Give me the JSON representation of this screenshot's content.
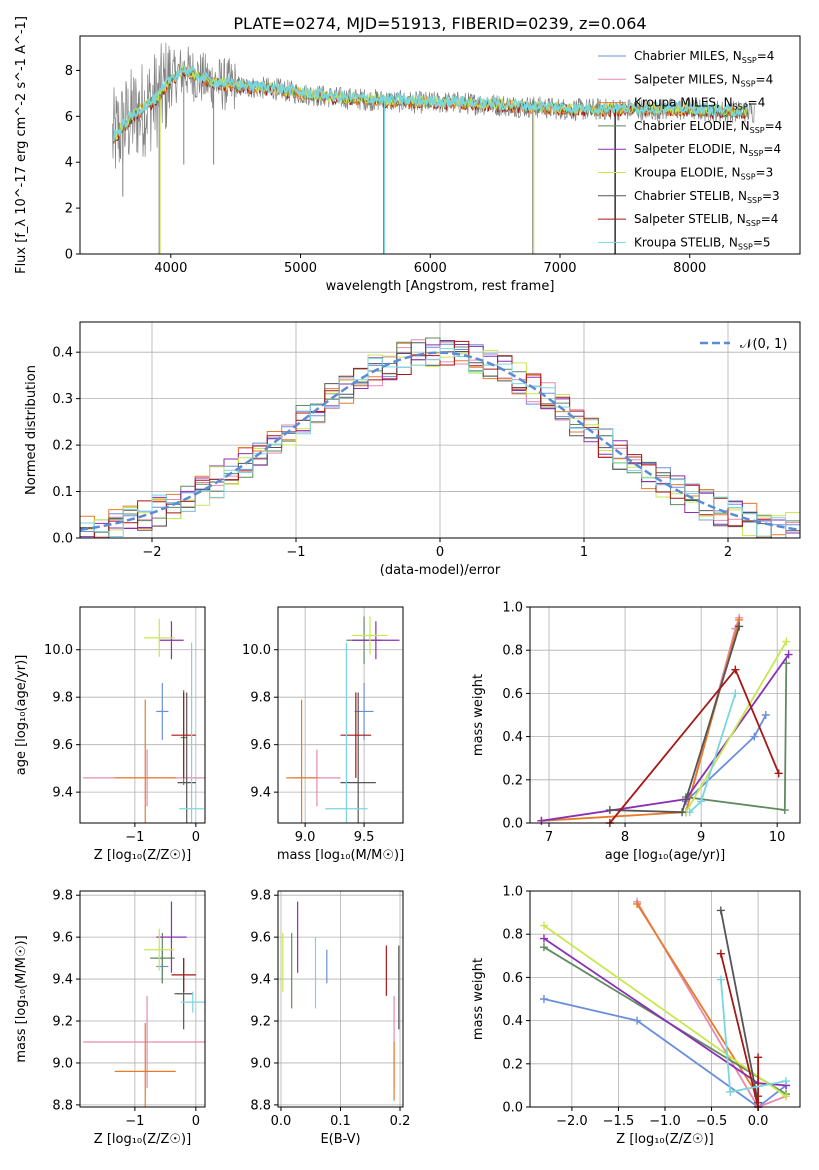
{
  "figure_title": "PLATE=0274, MJD=51913, FIBERID=0239, z=0.064",
  "colors": {
    "chabrier_miles": "#6a8edc",
    "salpeter_miles": "#e68ab0",
    "kroupa_miles": "#e87b27",
    "chabrier_elodie": "#5f8a5f",
    "salpeter_elodie": "#8b2fb5",
    "kroupa_elodie": "#c6e84e",
    "chabrier_stelib": "#555555",
    "salpeter_stelib": "#a81616",
    "kroupa_stelib": "#7ad6de",
    "observed": "#808080",
    "normal_curve": "#5b8bd6",
    "grid": "#b0b0b0"
  },
  "chart_data": [
    {
      "id": "spectrum",
      "type": "line",
      "xlabel": "wavelength [Angstrom, rest frame]",
      "ylabel": "Flux [f_λ 10^-17 erg cm^-2 s^-1 A^-1]",
      "xlim": [
        3300,
        8850
      ],
      "ylim": [
        0,
        9.5
      ],
      "xticks": [
        4000,
        5000,
        6000,
        7000,
        8000
      ],
      "yticks": [
        0,
        2,
        4,
        6,
        8
      ],
      "grid": false,
      "legend_position": "top-right",
      "legend": [
        {
          "label": "Chabrier MILES, N",
          "sub": "SSP",
          "value": "=4",
          "color_key": "chabrier_miles"
        },
        {
          "label": "Salpeter MILES, N",
          "sub": "SSP",
          "value": "=4",
          "color_key": "salpeter_miles"
        },
        {
          "label": "Kroupa MILES, N",
          "sub": "SSP",
          "value": "=4",
          "color_key": "kroupa_miles"
        },
        {
          "label": "Chabrier ELODIE, N",
          "sub": "SSP",
          "value": "=4",
          "color_key": "chabrier_elodie"
        },
        {
          "label": "Salpeter ELODIE, N",
          "sub": "SSP",
          "value": "=4",
          "color_key": "salpeter_elodie"
        },
        {
          "label": "Kroupa ELODIE, N",
          "sub": "SSP",
          "value": "=3",
          "color_key": "kroupa_elodie"
        },
        {
          "label": "Chabrier STELIB, N",
          "sub": "SSP",
          "value": "=3",
          "color_key": "chabrier_stelib"
        },
        {
          "label": "Salpeter STELIB, N",
          "sub": "SSP",
          "value": "=4",
          "color_key": "salpeter_stelib"
        },
        {
          "label": "Kroupa STELIB, N",
          "sub": "SSP",
          "value": "=5",
          "color_key": "kroupa_stelib"
        }
      ],
      "continuum": {
        "x": [
          3550,
          3700,
          3900,
          4000,
          4100,
          4300,
          4500,
          4800,
          5000,
          5300,
          5600,
          5900,
          6200,
          6500,
          6800,
          7100,
          7400,
          7700,
          8000,
          8300,
          8500
        ],
        "y": [
          5.0,
          6.0,
          6.8,
          7.6,
          8.0,
          7.5,
          7.3,
          7.2,
          7.0,
          6.8,
          6.7,
          6.6,
          6.6,
          6.5,
          6.4,
          6.3,
          6.3,
          6.3,
          6.3,
          6.2,
          6.2
        ]
      },
      "observed_spikes": [
        {
          "x": 3910,
          "y": 0.0
        },
        {
          "x": 5640,
          "y": 0.0
        },
        {
          "x": 6790,
          "y": 0.0
        },
        {
          "x": 7420,
          "y": 0.0
        },
        {
          "x": 3630,
          "y": 2.5
        },
        {
          "x": 4330,
          "y": 3.9
        },
        {
          "x": 4100,
          "y": 3.9
        }
      ]
    },
    {
      "id": "residuals",
      "type": "step",
      "xlabel": "(data-model)/error",
      "ylabel": "Normed distribution",
      "xlim": [
        -2.5,
        2.5
      ],
      "ylim": [
        0,
        0.465
      ],
      "xticks": [
        -2,
        -1,
        0,
        1,
        2
      ],
      "xtick_labels": [
        "−2",
        "−1",
        "0",
        "1",
        "2"
      ],
      "yticks": [
        0.0,
        0.1,
        0.2,
        0.3,
        0.4
      ],
      "ytick_labels": [
        "0.0",
        "0.1",
        "0.2",
        "0.3",
        "0.4"
      ],
      "grid": true,
      "legend_position": "top-right",
      "legend": [
        {
          "label": "𝒩(0, 1)",
          "color_key": "normal_curve",
          "style": "dashed"
        }
      ],
      "bin_width": 0.1
    },
    {
      "id": "age_vs_z",
      "type": "errorbar",
      "xlabel": "Z [log₁₀(Z/Z☉)]",
      "ylabel": "age  [log₁₀(age/yr)]",
      "xlim": [
        -1.9,
        0.15
      ],
      "ylim": [
        9.27,
        10.18
      ],
      "xticks": [
        -1,
        0
      ],
      "xtick_labels": [
        "−1",
        "0"
      ],
      "yticks": [
        9.4,
        9.6,
        9.8,
        10.0
      ],
      "ytick_labels": [
        "9.4",
        "9.6",
        "9.8",
        "10.0"
      ],
      "grid": true,
      "points": [
        {
          "color_key": "chabrier_miles",
          "x": -0.55,
          "xerr": 0.1,
          "y": 9.74,
          "yerr": 0.12
        },
        {
          "color_key": "salpeter_miles",
          "x": -0.8,
          "xerr": 1.05,
          "y": 9.46,
          "yerr": 0.12
        },
        {
          "color_key": "kroupa_miles",
          "x": -0.83,
          "xerr": 0.5,
          "y": 9.46,
          "yerr": 0.33
        },
        {
          "color_key": "chabrier_elodie",
          "x": -0.2,
          "xerr": 0.05,
          "y": 9.63,
          "yerr": 0.2
        },
        {
          "color_key": "salpeter_elodie",
          "x": -0.4,
          "xerr": 0.2,
          "y": 10.04,
          "yerr": 0.08
        },
        {
          "color_key": "kroupa_elodie",
          "x": -0.6,
          "xerr": 0.25,
          "y": 10.05,
          "yerr": 0.08
        },
        {
          "color_key": "chabrier_stelib",
          "x": -0.15,
          "xerr": 0.15,
          "y": 9.44,
          "yerr": 0.38
        },
        {
          "color_key": "salpeter_stelib",
          "x": -0.2,
          "xerr": 0.2,
          "y": 9.64,
          "yerr": 0.18
        },
        {
          "color_key": "kroupa_stelib",
          "x": -0.07,
          "xerr": 0.2,
          "y": 9.33,
          "yerr": 0.7
        }
      ]
    },
    {
      "id": "age_vs_mass",
      "type": "errorbar",
      "xlabel": "mass [log₁₀(M/M☉)]",
      "ylabel": "",
      "xlim": [
        8.77,
        9.83
      ],
      "ylim": [
        9.27,
        10.18
      ],
      "xticks": [
        9.0,
        9.5
      ],
      "xtick_labels": [
        "9.0",
        "9.5"
      ],
      "yticks": [
        9.4,
        9.6,
        9.8,
        10.0
      ],
      "ytick_labels": [
        "9.4",
        "9.6",
        "9.8",
        "10.0"
      ],
      "grid": true,
      "points": [
        {
          "color_key": "chabrier_miles",
          "x": 9.5,
          "xerr": 0.08,
          "y": 9.74,
          "yerr": 0.12
        },
        {
          "color_key": "salpeter_miles",
          "x": 9.1,
          "xerr": 0.2,
          "y": 9.46,
          "yerr": 0.12
        },
        {
          "color_key": "kroupa_miles",
          "x": 8.97,
          "xerr": 0.13,
          "y": 9.46,
          "yerr": 0.33
        },
        {
          "color_key": "chabrier_elodie",
          "x": 9.5,
          "xerr": 0.15,
          "y": 10.04,
          "yerr": 0.1
        },
        {
          "color_key": "salpeter_elodie",
          "x": 9.6,
          "xerr": 0.2,
          "y": 10.04,
          "yerr": 0.08
        },
        {
          "color_key": "kroupa_elodie",
          "x": 9.55,
          "xerr": 0.15,
          "y": 10.06,
          "yerr": 0.08
        },
        {
          "color_key": "chabrier_stelib",
          "x": 9.45,
          "xerr": 0.15,
          "y": 9.44,
          "yerr": 0.38
        },
        {
          "color_key": "salpeter_stelib",
          "x": 9.43,
          "xerr": 0.13,
          "y": 9.64,
          "yerr": 0.18
        },
        {
          "color_key": "kroupa_stelib",
          "x": 9.35,
          "xerr": 0.18,
          "y": 9.33,
          "yerr": 0.7
        }
      ]
    },
    {
      "id": "weight_vs_age",
      "type": "line",
      "xlabel": "age  [log₁₀(age/yr)]",
      "ylabel": "mass weight",
      "xlim": [
        6.75,
        10.3
      ],
      "ylim": [
        0,
        1.0
      ],
      "xticks": [
        7,
        8,
        9,
        10
      ],
      "xtick_labels": [
        "7",
        "8",
        "9",
        "10"
      ],
      "yticks": [
        0,
        0.2,
        0.4,
        0.6,
        0.8,
        1.0
      ],
      "ytick_labels": [
        "0.0",
        "0.2",
        "0.4",
        "0.6",
        "0.8",
        "1.0"
      ],
      "grid": true,
      "series": [
        {
          "color_key": "chabrier_miles",
          "x": [
            8.8,
            9.7,
            9.85
          ],
          "y": [
            0.1,
            0.4,
            0.5
          ]
        },
        {
          "color_key": "salpeter_miles",
          "x": [
            8.8,
            9.45,
            9.5
          ],
          "y": [
            0.05,
            0.9,
            0.95
          ]
        },
        {
          "color_key": "kroupa_miles",
          "x": [
            6.9,
            8.8,
            9.5
          ],
          "y": [
            0.01,
            0.05,
            0.94
          ]
        },
        {
          "color_key": "chabrier_elodie",
          "x": [
            8.8,
            10.1,
            10.12
          ],
          "y": [
            0.12,
            0.06,
            0.74
          ]
        },
        {
          "color_key": "salpeter_elodie",
          "x": [
            6.9,
            8.8,
            10.15
          ],
          "y": [
            0.01,
            0.11,
            0.78
          ]
        },
        {
          "color_key": "kroupa_elodie",
          "x": [
            8.8,
            10.12
          ],
          "y": [
            0.05,
            0.84
          ]
        },
        {
          "color_key": "chabrier_stelib",
          "x": [
            7.8,
            8.75,
            9.5
          ],
          "y": [
            0.06,
            0.05,
            0.91
          ]
        },
        {
          "color_key": "salpeter_stelib",
          "x": [
            7.8,
            9.45,
            10.02
          ],
          "y": [
            0.0,
            0.71,
            0.23
          ]
        },
        {
          "color_key": "kroupa_stelib",
          "x": [
            8.85,
            9.0,
            9.45
          ],
          "y": [
            0.05,
            0.1,
            0.6
          ]
        }
      ]
    },
    {
      "id": "mass_vs_z",
      "type": "errorbar",
      "xlabel": "Z [log₁₀(Z/Z☉)]",
      "ylabel": "mass [log₁₀(M/M☉)]",
      "xlim": [
        -1.9,
        0.15
      ],
      "ylim": [
        8.79,
        9.82
      ],
      "xticks": [
        -1,
        0
      ],
      "xtick_labels": [
        "−1",
        "0"
      ],
      "yticks": [
        8.8,
        9.0,
        9.2,
        9.4,
        9.6,
        9.8
      ],
      "ytick_labels": [
        "8.8",
        "9.0",
        "9.2",
        "9.4",
        "9.6",
        "9.8"
      ],
      "grid": true,
      "points": [
        {
          "color_key": "chabrier_miles",
          "x": -0.55,
          "xerr": 0.1,
          "y": 9.46,
          "yerr": 0.08
        },
        {
          "color_key": "salpeter_miles",
          "x": -0.8,
          "xerr": 1.05,
          "y": 9.1,
          "yerr": 0.22
        },
        {
          "color_key": "kroupa_miles",
          "x": -0.83,
          "xerr": 0.5,
          "y": 8.96,
          "yerr": 0.23
        },
        {
          "color_key": "chabrier_elodie",
          "x": -0.55,
          "xerr": 0.2,
          "y": 9.5,
          "yerr": 0.12
        },
        {
          "color_key": "salpeter_elodie",
          "x": -0.4,
          "xerr": 0.25,
          "y": 9.6,
          "yerr": 0.17
        },
        {
          "color_key": "kroupa_elodie",
          "x": -0.6,
          "xerr": 0.25,
          "y": 9.54,
          "yerr": 0.1
        },
        {
          "color_key": "chabrier_stelib",
          "x": -0.2,
          "xerr": 0.15,
          "y": 9.33,
          "yerr": 0.17
        },
        {
          "color_key": "salpeter_stelib",
          "x": -0.2,
          "xerr": 0.2,
          "y": 9.42,
          "yerr": 0.08
        },
        {
          "color_key": "kroupa_stelib",
          "x": -0.05,
          "xerr": 0.2,
          "y": 9.29,
          "yerr": 0.05
        }
      ]
    },
    {
      "id": "mass_vs_ebv",
      "type": "errorbar",
      "xlabel": "E(B-V)",
      "ylabel": "",
      "xlim": [
        -0.005,
        0.205
      ],
      "ylim": [
        8.79,
        9.82
      ],
      "xticks": [
        0.0,
        0.1,
        0.2
      ],
      "xtick_labels": [
        "0.0",
        "0.1",
        "0.2"
      ],
      "yticks": [
        8.8,
        9.0,
        9.2,
        9.4,
        9.6,
        9.8
      ],
      "ytick_labels": [
        "8.8",
        "9.0",
        "9.2",
        "9.4",
        "9.6",
        "9.8"
      ],
      "grid": true,
      "points": [
        {
          "color_key": "chabrier_miles",
          "x": 0.077,
          "xerr": 0,
          "y": 9.46,
          "yerr": 0.08
        },
        {
          "color_key": "salpeter_miles",
          "x": 0.19,
          "xerr": 0,
          "y": 9.1,
          "yerr": 0.22
        },
        {
          "color_key": "kroupa_miles",
          "x": 0.19,
          "xerr": 0,
          "y": 8.96,
          "yerr": 0.14
        },
        {
          "color_key": "chabrier_elodie",
          "x": 0.018,
          "xerr": 0,
          "y": 9.44,
          "yerr": 0.18
        },
        {
          "color_key": "salpeter_elodie",
          "x": 0.028,
          "xerr": 0,
          "y": 9.6,
          "yerr": 0.17
        },
        {
          "color_key": "kroupa_elodie",
          "x": 0.003,
          "xerr": 0,
          "y": 9.48,
          "yerr": 0.14
        },
        {
          "color_key": "chabrier_stelib",
          "x": 0.198,
          "xerr": 0,
          "y": 9.36,
          "yerr": 0.2
        },
        {
          "color_key": "salpeter_stelib",
          "x": 0.177,
          "xerr": 0,
          "y": 9.44,
          "yerr": 0.12
        },
        {
          "color_key": "kroupa_stelib",
          "x": 0.058,
          "xerr": 0,
          "y": 9.43,
          "yerr": 0.17
        }
      ]
    },
    {
      "id": "weight_vs_z",
      "type": "line",
      "xlabel": "Z [log₁₀(Z/Z☉)]",
      "ylabel": "mass weight",
      "xlim": [
        -2.45,
        0.45
      ],
      "ylim": [
        0,
        1.0
      ],
      "xticks": [
        -2.0,
        -1.5,
        -1.0,
        -0.5,
        0.0
      ],
      "xtick_labels": [
        "−2.0",
        "−1.5",
        "−1.0",
        "−0.5",
        "0.0"
      ],
      "yticks": [
        0,
        0.2,
        0.4,
        0.6,
        0.8,
        1.0
      ],
      "ytick_labels": [
        "0.0",
        "0.2",
        "0.4",
        "0.6",
        "0.8",
        "1.0"
      ],
      "grid": true,
      "series": [
        {
          "color_key": "chabrier_miles",
          "x": [
            -2.3,
            -1.3,
            0.0,
            0.3
          ],
          "y": [
            0.5,
            0.4,
            0.0,
            0.1
          ]
        },
        {
          "color_key": "salpeter_miles",
          "x": [
            -1.3,
            0.0,
            0.3
          ],
          "y": [
            0.95,
            0.0,
            0.05
          ]
        },
        {
          "color_key": "kroupa_miles",
          "x": [
            -1.3,
            0.0
          ],
          "y": [
            0.94,
            0.05
          ]
        },
        {
          "color_key": "chabrier_elodie",
          "x": [
            -2.3,
            0.3
          ],
          "y": [
            0.74,
            0.06
          ]
        },
        {
          "color_key": "salpeter_elodie",
          "x": [
            -2.3,
            0.0,
            0.3
          ],
          "y": [
            0.78,
            0.11,
            0.1
          ]
        },
        {
          "color_key": "kroupa_elodie",
          "x": [
            -2.3,
            0.3
          ],
          "y": [
            0.84,
            0.05
          ]
        },
        {
          "color_key": "chabrier_stelib",
          "x": [
            -0.4,
            0.0,
            0.0
          ],
          "y": [
            0.91,
            0.02,
            0.05
          ]
        },
        {
          "color_key": "salpeter_stelib",
          "x": [
            -0.4,
            0.0,
            0.0
          ],
          "y": [
            0.71,
            0.0,
            0.23
          ]
        },
        {
          "color_key": "kroupa_stelib",
          "x": [
            -0.4,
            -0.3,
            0.3
          ],
          "y": [
            0.59,
            0.07,
            0.12
          ]
        }
      ]
    }
  ]
}
